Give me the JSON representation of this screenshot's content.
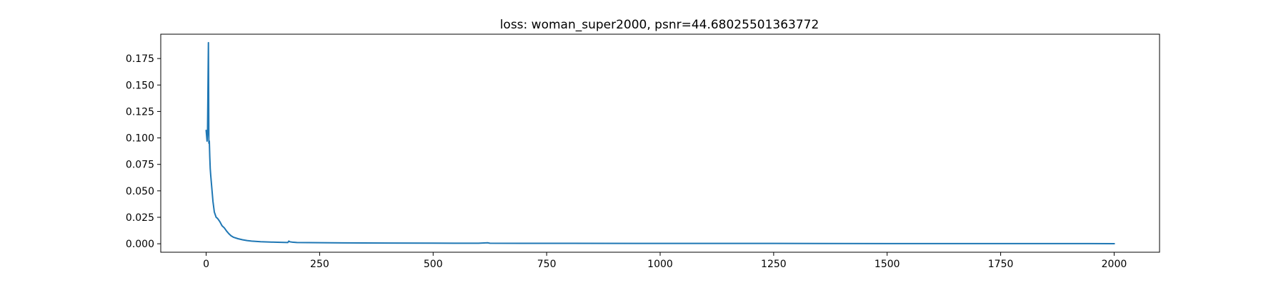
{
  "chart_data": {
    "type": "line",
    "title": "loss: woman_super2000, psnr=44.68025501363772",
    "xlabel": "",
    "ylabel": "",
    "xlim": [
      -100,
      2100
    ],
    "ylim": [
      -0.008,
      0.198
    ],
    "xticks": [
      0,
      250,
      500,
      750,
      1000,
      1250,
      1500,
      1750,
      2000
    ],
    "xtick_labels": [
      "0",
      "250",
      "500",
      "750",
      "1000",
      "1250",
      "1500",
      "1750",
      "2000"
    ],
    "yticks": [
      0.0,
      0.025,
      0.05,
      0.075,
      0.1,
      0.125,
      0.15,
      0.175
    ],
    "ytick_labels": [
      "0.000",
      "0.025",
      "0.050",
      "0.075",
      "0.100",
      "0.125",
      "0.150",
      "0.175"
    ],
    "grid": false,
    "series": [
      {
        "color": "#1f77b4",
        "x": [
          0,
          2,
          3,
          5,
          6,
          7,
          8,
          9,
          10,
          12,
          15,
          18,
          22,
          25,
          30,
          35,
          40,
          45,
          50,
          55,
          60,
          70,
          80,
          90,
          100,
          120,
          150,
          180,
          182,
          185,
          190,
          200,
          250,
          300,
          400,
          500,
          550,
          600,
          620,
          625,
          700,
          800,
          1000,
          1250,
          1500,
          1750,
          2000
        ],
        "y": [
          0.107,
          0.097,
          0.105,
          0.19,
          0.095,
          0.097,
          0.082,
          0.071,
          0.065,
          0.055,
          0.04,
          0.03,
          0.025,
          0.024,
          0.021,
          0.017,
          0.015,
          0.012,
          0.0095,
          0.0075,
          0.0062,
          0.0048,
          0.0038,
          0.003,
          0.0025,
          0.0019,
          0.0015,
          0.0012,
          0.0025,
          0.0018,
          0.0015,
          0.0012,
          0.001,
          0.0008,
          0.0007,
          0.0006,
          0.0005,
          0.0005,
          0.0009,
          0.0005,
          0.0004,
          0.0004,
          0.0003,
          0.0003,
          0.0002,
          0.0002,
          0.0001
        ]
      }
    ]
  }
}
